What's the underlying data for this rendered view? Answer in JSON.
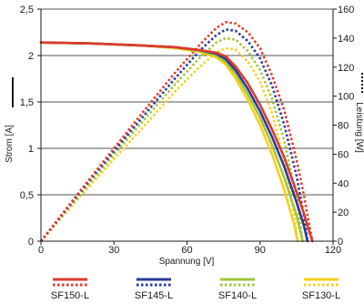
{
  "chart_data": {
    "type": "line",
    "xlabel": "Spannung [V]",
    "ylabel_left": "Strom [A]",
    "ylabel_right": "Leistung [W]",
    "xlim": [
      0,
      120
    ],
    "ylim_left": [
      0,
      2.5
    ],
    "ylim_right": [
      0,
      160
    ],
    "x_ticks": [
      "0",
      "30",
      "60",
      "90",
      "120"
    ],
    "y_left_ticks": [
      "0",
      "0,5",
      "1",
      "1,5",
      "2",
      "2,5"
    ],
    "y_right_ticks": [
      "0",
      "20",
      "40",
      "60",
      "80",
      "100",
      "120",
      "140",
      "160"
    ],
    "grid": "horizontal",
    "legend_position": "bottom",
    "series": [
      {
        "name": "SF150-L",
        "color": "#e03a2a",
        "current": {
          "x": [
            0,
            20,
            40,
            55,
            65,
            72,
            76,
            80,
            85,
            90,
            95,
            100,
            105,
            108,
            110,
            111.5
          ],
          "y": [
            2.14,
            2.13,
            2.11,
            2.09,
            2.06,
            2.03,
            1.99,
            1.88,
            1.7,
            1.47,
            1.2,
            0.9,
            0.53,
            0.3,
            0.12,
            0
          ]
        },
        "power": {
          "x": [
            0,
            20,
            40,
            55,
            65,
            72,
            76,
            80,
            85,
            90,
            95,
            100,
            105,
            108,
            110,
            111.5
          ],
          "y": [
            0,
            43,
            85,
            116,
            135,
            147,
            151,
            150,
            144,
            133,
            114,
            90,
            56,
            32,
            13,
            0
          ]
        }
      },
      {
        "name": "SF145-L",
        "color": "#2a3a9a",
        "current": {
          "x": [
            0,
            20,
            40,
            55,
            65,
            72,
            76,
            80,
            85,
            90,
            95,
            100,
            105,
            108,
            109.5
          ],
          "y": [
            2.14,
            2.13,
            2.11,
            2.09,
            2.06,
            2.02,
            1.96,
            1.84,
            1.64,
            1.4,
            1.12,
            0.8,
            0.42,
            0.17,
            0
          ]
        },
        "power": {
          "x": [
            0,
            20,
            40,
            55,
            65,
            72,
            76,
            80,
            85,
            90,
            95,
            100,
            105,
            108,
            109.5
          ],
          "y": [
            0,
            42,
            82,
            112,
            131,
            142,
            146,
            145,
            138,
            126,
            107,
            80,
            45,
            18,
            0
          ]
        }
      },
      {
        "name": "SF140-L",
        "color": "#a3c43a",
        "current": {
          "x": [
            0,
            20,
            40,
            55,
            65,
            72,
            76,
            80,
            85,
            90,
            95,
            100,
            105,
            107.5
          ],
          "y": [
            2.14,
            2.13,
            2.11,
            2.09,
            2.05,
            2.0,
            1.93,
            1.8,
            1.58,
            1.33,
            1.03,
            0.68,
            0.28,
            0
          ]
        },
        "power": {
          "x": [
            0,
            20,
            40,
            55,
            65,
            72,
            76,
            80,
            85,
            90,
            95,
            100,
            105,
            107.5
          ],
          "y": [
            0,
            40,
            79,
            108,
            126,
            137,
            140,
            139,
            131,
            118,
            98,
            69,
            30,
            0
          ]
        }
      },
      {
        "name": "SF130-L",
        "color": "#f2d21a",
        "current": {
          "x": [
            0,
            20,
            40,
            55,
            65,
            72,
            76,
            80,
            85,
            90,
            95,
            100,
            104,
            105.5
          ],
          "y": [
            2.14,
            2.13,
            2.11,
            2.08,
            2.04,
            1.98,
            1.9,
            1.75,
            1.52,
            1.25,
            0.93,
            0.55,
            0.18,
            0
          ]
        },
        "power": {
          "x": [
            0,
            20,
            40,
            55,
            65,
            72,
            76,
            80,
            85,
            90,
            95,
            100,
            104,
            105.5
          ],
          "y": [
            0,
            38,
            75,
            103,
            120,
            130,
            133,
            132,
            124,
            110,
            88,
            55,
            18,
            0
          ]
        }
      }
    ]
  }
}
